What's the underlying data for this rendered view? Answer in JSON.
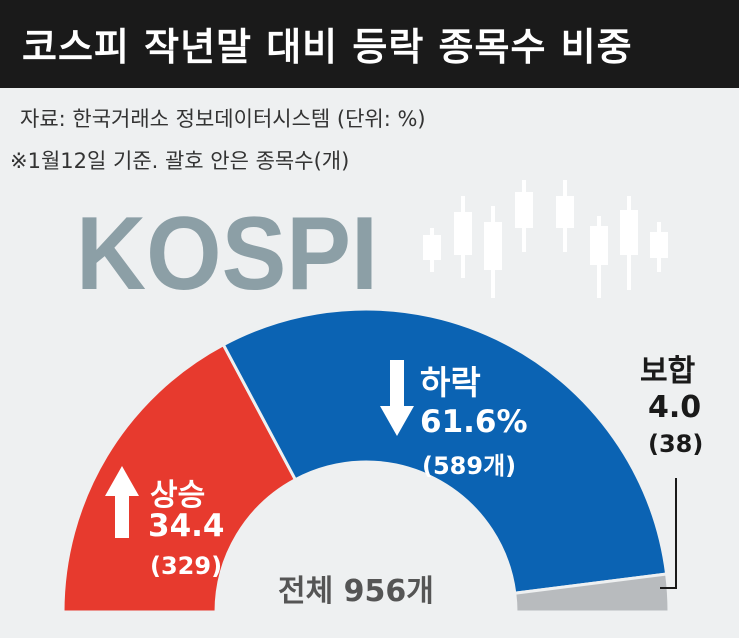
{
  "header": {
    "title": "코스피 작년말 대비 등락 종목수 비중",
    "source": "자료: 한국거래소 정보데이터시스템 (단위: %)",
    "note": "※1월12일 기준. 괄호 안은 종목수(개)"
  },
  "logo_text": "KOSPI",
  "colors": {
    "up": "#e73a2e",
    "down": "#0b63b3",
    "flat": "#b8bbbe",
    "logo": "#8c9fa6",
    "background": "#eef0f1"
  },
  "icons": {
    "up": "arrow-up-icon",
    "down": "arrow-down-icon",
    "decoration": "candlestick-icon"
  },
  "chart_data": {
    "type": "pie",
    "subtype": "half-donut",
    "title": "코스피 작년말 대비 등락 종목수 비중",
    "unit": "%",
    "total_label": "전체 956개",
    "total": 956,
    "categories": [
      "상승",
      "하락",
      "보합"
    ],
    "values": [
      34.4,
      61.6,
      4.0
    ],
    "counts": [
      329,
      589,
      38
    ],
    "value_labels": [
      "34.4",
      "61.6%",
      "4.0"
    ],
    "count_labels": [
      "(329)",
      "(589개)",
      "(38)"
    ]
  }
}
